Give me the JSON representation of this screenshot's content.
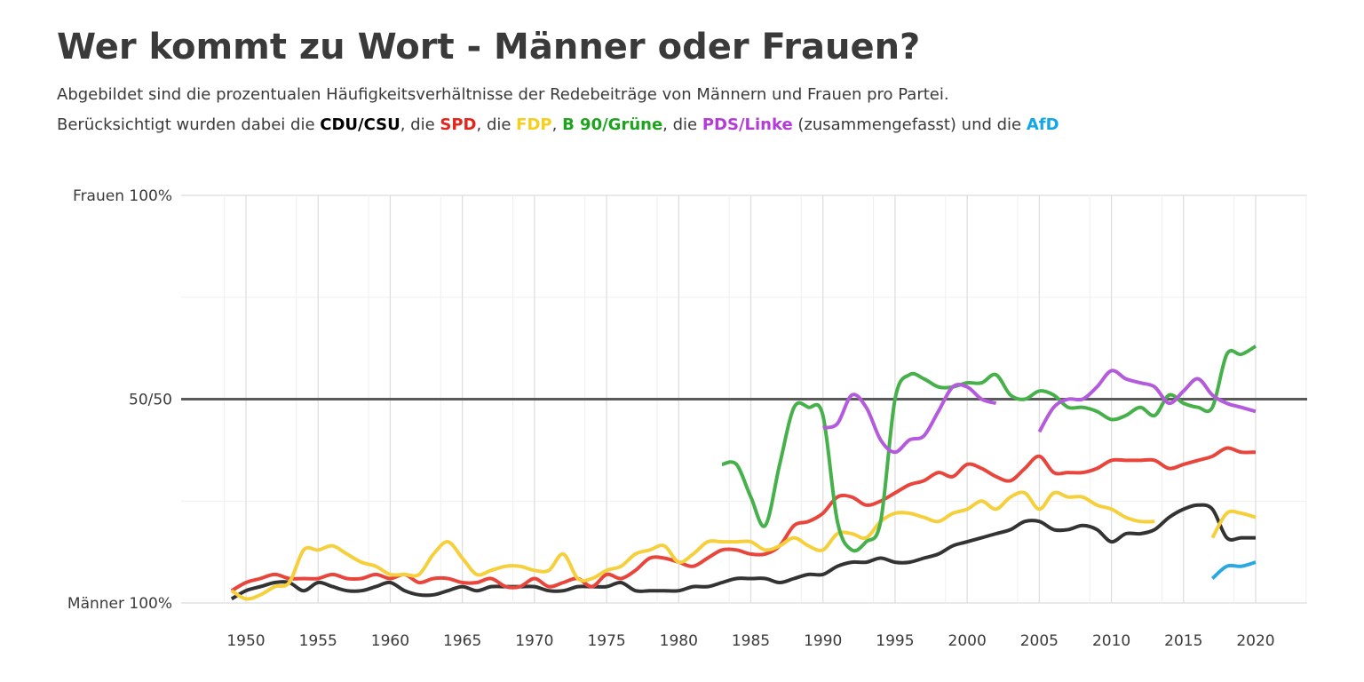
{
  "title": "Wer kommt zu Wort - Männer oder Frauen?",
  "subtitle": {
    "line1": "Abgebildet sind die prozentualen Häufigkeitsverhältnisse der Redebeiträge von Männern und Frauen pro Partei.",
    "line2_prefix": "Berücksichtigt wurden dabei die ",
    "sep1": ", die ",
    "sep2": ", die ",
    "sep3": ", ",
    "sep4": ", die ",
    "sep5": " (zusammengefasst) und die ",
    "parties": [
      {
        "label": "CDU/CSU",
        "color": "#000000"
      },
      {
        "label": "SPD",
        "color": "#e5241b"
      },
      {
        "label": "FDP",
        "color": "#f5cf1b"
      },
      {
        "label": "B 90/Grüne",
        "color": "#1ea31e"
      },
      {
        "label": "PDS/Linke",
        "color": "#b43bd6"
      },
      {
        "label": "AfD",
        "color": "#12a6e6"
      }
    ]
  },
  "chart_data": {
    "type": "line",
    "ylim": [
      0,
      100
    ],
    "xlim": [
      1948,
      2024
    ],
    "y_ticks": [
      {
        "value": 100,
        "label": "Frauen 100%"
      },
      {
        "value": 50,
        "label": "50/50"
      },
      {
        "value": 0,
        "label": "Männer 100%"
      }
    ],
    "x_ticks": [
      1950,
      1955,
      1960,
      1965,
      1970,
      1975,
      1980,
      1985,
      1990,
      1995,
      2000,
      2005,
      2010,
      2015,
      2020
    ],
    "reference_line": 50,
    "grid": true,
    "series": [
      {
        "name": "CDU/CSU",
        "color": "#333333",
        "x": [
          1949,
          1950,
          1951,
          1952,
          1953,
          1954,
          1955,
          1956,
          1957,
          1958,
          1959,
          1960,
          1961,
          1962,
          1963,
          1964,
          1965,
          1966,
          1967,
          1968,
          1969,
          1970,
          1971,
          1972,
          1973,
          1974,
          1975,
          1976,
          1977,
          1978,
          1979,
          1980,
          1981,
          1982,
          1983,
          1984,
          1985,
          1986,
          1987,
          1988,
          1989,
          1990,
          1991,
          1992,
          1993,
          1994,
          1995,
          1996,
          1997,
          1998,
          1999,
          2000,
          2001,
          2002,
          2003,
          2004,
          2005,
          2006,
          2007,
          2008,
          2009,
          2010,
          2011,
          2012,
          2013,
          2014,
          2015,
          2016,
          2017,
          2018,
          2019,
          2020
        ],
        "y": [
          1,
          3,
          4,
          5,
          5,
          3,
          5,
          4,
          3,
          3,
          4,
          5,
          3,
          2,
          2,
          3,
          4,
          3,
          4,
          4,
          4,
          4,
          3,
          3,
          4,
          4,
          4,
          5,
          3,
          3,
          3,
          3,
          4,
          4,
          5,
          6,
          6,
          6,
          5,
          6,
          7,
          7,
          9,
          10,
          10,
          11,
          10,
          10,
          11,
          12,
          14,
          15,
          16,
          17,
          18,
          20,
          20,
          18,
          18,
          19,
          18,
          15,
          17,
          17,
          18,
          21,
          23,
          24,
          23,
          16,
          16,
          16
        ]
      },
      {
        "name": "SPD",
        "color": "#e8463c",
        "x": [
          1949,
          1950,
          1951,
          1952,
          1953,
          1954,
          1955,
          1956,
          1957,
          1958,
          1959,
          1960,
          1961,
          1962,
          1963,
          1964,
          1965,
          1966,
          1967,
          1968,
          1969,
          1970,
          1971,
          1972,
          1973,
          1974,
          1975,
          1976,
          1977,
          1978,
          1979,
          1980,
          1981,
          1982,
          1983,
          1984,
          1985,
          1986,
          1987,
          1988,
          1989,
          1990,
          1991,
          1992,
          1993,
          1994,
          1995,
          1996,
          1997,
          1998,
          1999,
          2000,
          2001,
          2002,
          2003,
          2004,
          2005,
          2006,
          2007,
          2008,
          2009,
          2010,
          2011,
          2012,
          2013,
          2014,
          2015,
          2016,
          2017,
          2018,
          2019,
          2020
        ],
        "y": [
          3,
          5,
          6,
          7,
          6,
          6,
          6,
          7,
          6,
          6,
          7,
          6,
          7,
          5,
          6,
          6,
          5,
          5,
          6,
          4,
          4,
          6,
          4,
          5,
          6,
          4,
          7,
          6,
          8,
          11,
          11,
          10,
          9,
          11,
          13,
          13,
          12,
          12,
          14,
          19,
          20,
          22,
          26,
          26,
          24,
          25,
          27,
          29,
          30,
          32,
          31,
          34,
          33,
          31,
          30,
          33,
          36,
          32,
          32,
          32,
          33,
          35,
          35,
          35,
          35,
          33,
          34,
          35,
          36,
          38,
          37,
          37
        ]
      },
      {
        "name": "FDP",
        "color": "#f5d03c",
        "x": [
          1949,
          1950,
          1951,
          1952,
          1953,
          1954,
          1955,
          1956,
          1957,
          1958,
          1959,
          1960,
          1961,
          1962,
          1963,
          1964,
          1965,
          1966,
          1967,
          1968,
          1969,
          1970,
          1971,
          1972,
          1973,
          1974,
          1975,
          1976,
          1977,
          1978,
          1979,
          1980,
          1981,
          1982,
          1983,
          1984,
          1985,
          1986,
          1987,
          1988,
          1989,
          1990,
          1991,
          1992,
          1993,
          1994,
          1995,
          1996,
          1997,
          1998,
          1999,
          2000,
          2001,
          2002,
          2003,
          2004,
          2005,
          2006,
          2007,
          2008,
          2009,
          2010,
          2011,
          2012,
          2013
        ],
        "y": [
          3,
          1,
          2,
          4,
          5,
          13,
          13,
          14,
          12,
          10,
          9,
          7,
          7,
          7,
          12,
          15,
          11,
          7,
          8,
          9,
          9,
          8,
          8,
          12,
          6,
          6,
          8,
          9,
          12,
          13,
          14,
          10,
          12,
          15,
          15,
          15,
          15,
          13,
          14,
          16,
          14,
          13,
          17,
          17,
          16,
          20,
          22,
          22,
          21,
          20,
          22,
          23,
          25,
          23,
          26,
          27,
          23,
          27,
          26,
          26,
          24,
          23,
          21,
          20,
          20
        ]
      },
      {
        "name": "FDP",
        "color": "#f5d03c",
        "x": [
          2017,
          2018,
          2019,
          2020
        ],
        "y": [
          16,
          22,
          22,
          21
        ]
      },
      {
        "name": "B 90/Grüne",
        "color": "#46b04a",
        "x": [
          1983,
          1984,
          1985,
          1986,
          1987,
          1988,
          1989,
          1990,
          1991,
          1992,
          1993,
          1994,
          1995,
          1996,
          1997,
          1998,
          1999,
          2000,
          2001,
          2002,
          2003,
          2004,
          2005,
          2006,
          2007,
          2008,
          2009,
          2010,
          2011,
          2012,
          2013,
          2014,
          2015,
          2016,
          2017,
          2018,
          2019,
          2020
        ],
        "y": [
          34,
          34,
          26,
          19,
          34,
          48,
          48,
          46,
          20,
          13,
          15,
          20,
          50,
          56,
          55,
          53,
          53,
          54,
          54,
          56,
          51,
          50,
          52,
          51,
          48,
          48,
          47,
          45,
          46,
          48,
          46,
          51,
          49,
          48,
          48,
          61,
          61,
          63
        ]
      },
      {
        "name": "PDS/Linke",
        "color": "#b45adc",
        "x": [
          1990,
          1991,
          1992,
          1993,
          1994,
          1995,
          1996,
          1997,
          1998,
          1999,
          2000,
          2001,
          2002
        ],
        "y": [
          43,
          44,
          51,
          48,
          40,
          37,
          40,
          41,
          47,
          53,
          53,
          50,
          49
        ]
      },
      {
        "name": "PDS/Linke",
        "color": "#b45adc",
        "x": [
          2005,
          2006,
          2007,
          2008,
          2009,
          2010,
          2011,
          2012,
          2013,
          2014,
          2015,
          2016,
          2017,
          2018,
          2019,
          2020
        ],
        "y": [
          42,
          48,
          50,
          50,
          53,
          57,
          55,
          54,
          53,
          49,
          52,
          55,
          51,
          49,
          48,
          47
        ]
      },
      {
        "name": "AfD",
        "color": "#2aa9e0",
        "x": [
          2017,
          2018,
          2019,
          2020
        ],
        "y": [
          6,
          9,
          9,
          10
        ]
      }
    ]
  }
}
